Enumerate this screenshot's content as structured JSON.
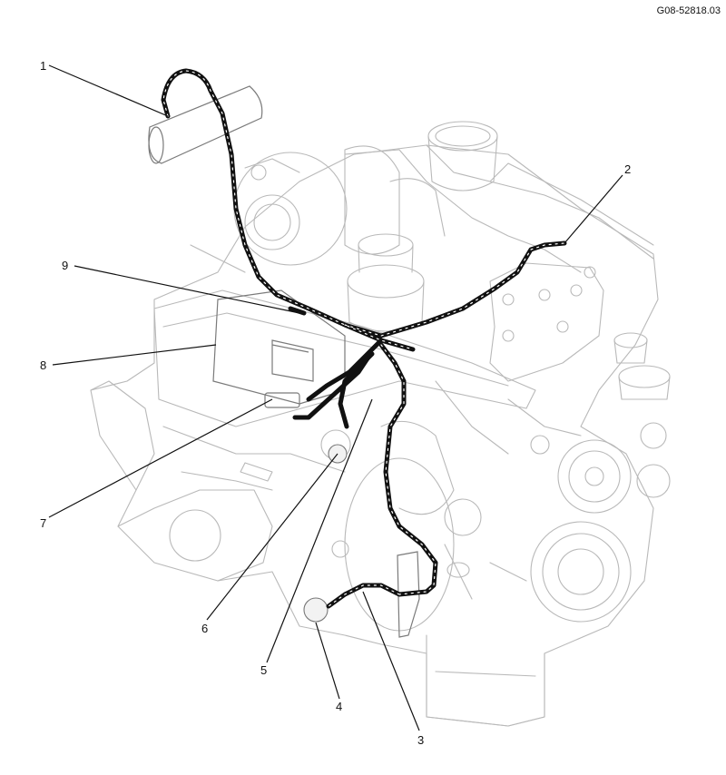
{
  "drawing_ref": "G08-52818.03",
  "callouts": [
    {
      "id": "1",
      "label": "1"
    },
    {
      "id": "2",
      "label": "2"
    },
    {
      "id": "3",
      "label": "3"
    },
    {
      "id": "4",
      "label": "4"
    },
    {
      "id": "5",
      "label": "5"
    },
    {
      "id": "6",
      "label": "6"
    },
    {
      "id": "7",
      "label": "7"
    },
    {
      "id": "8",
      "label": "8"
    },
    {
      "id": "9",
      "label": "9"
    }
  ]
}
